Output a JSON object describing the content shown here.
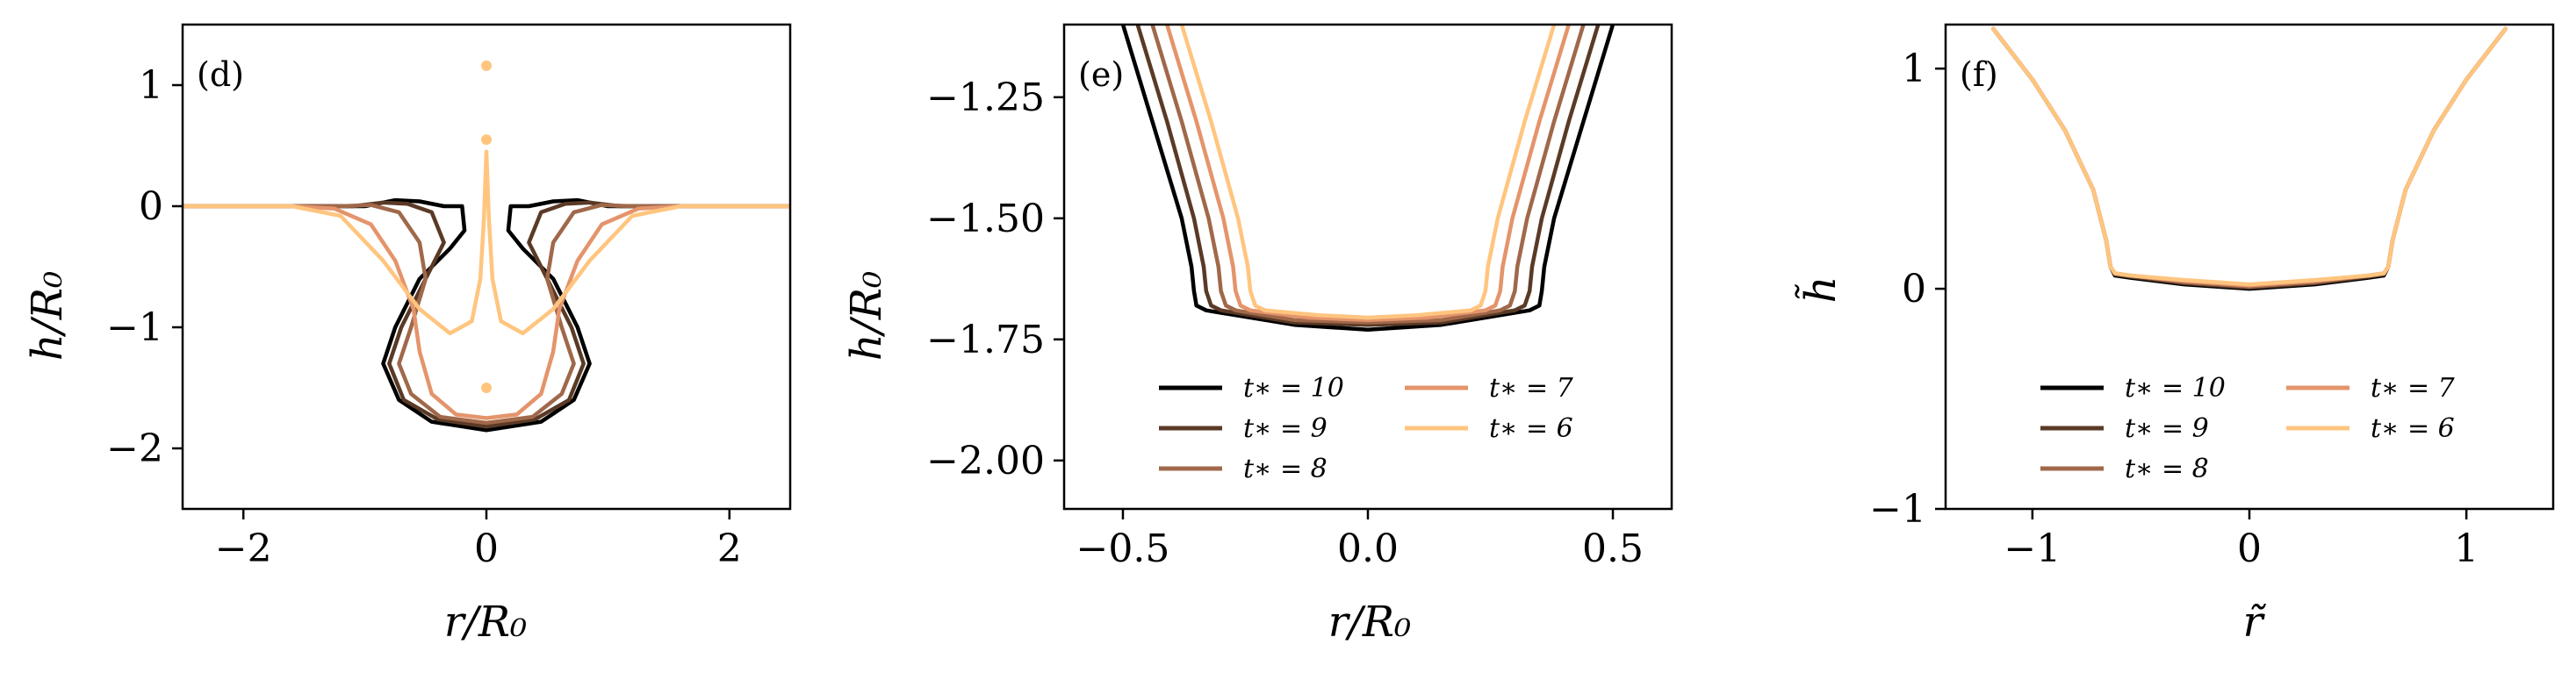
{
  "chart_data": [
    {
      "panel_tag": "(d)",
      "type": "line",
      "xlabel": "r/R₀",
      "ylabel": "h/R₀",
      "xlim": [
        -2.5,
        2.5
      ],
      "ylim": [
        -2.5,
        1.5
      ],
      "xticks": [
        {
          "v": -2,
          "label": "−2"
        },
        {
          "v": 0,
          "label": "0"
        },
        {
          "v": 2,
          "label": "2"
        }
      ],
      "yticks": [
        {
          "v": 1,
          "label": "1"
        },
        {
          "v": 0,
          "label": "0"
        },
        {
          "v": -1,
          "label": "−1"
        },
        {
          "v": -2,
          "label": "−2"
        }
      ],
      "series": [
        {
          "t": 10,
          "color": "#000000",
          "x": [
            -2.5,
            -2.0,
            -1.5,
            -1.0,
            -0.75,
            -0.55,
            -0.35,
            -0.2,
            -0.18,
            -0.3,
            -0.55,
            -0.75,
            -0.85,
            -0.72,
            -0.45,
            0.0,
            0.45,
            0.72,
            0.85,
            0.75,
            0.55,
            0.3,
            0.18,
            0.2,
            0.35,
            0.55,
            0.75,
            1.0,
            1.5,
            2.0,
            2.5
          ],
          "y": [
            0,
            0,
            0,
            0,
            0.05,
            0.04,
            0,
            0,
            -0.2,
            -0.35,
            -0.6,
            -1.0,
            -1.3,
            -1.6,
            -1.78,
            -1.85,
            -1.78,
            -1.6,
            -1.3,
            -1.0,
            -0.6,
            -0.35,
            -0.2,
            0,
            0,
            0.04,
            0.05,
            0,
            0,
            0,
            0
          ]
        },
        {
          "t": 9,
          "color": "#5a3a26",
          "x": [
            -2.5,
            -2.0,
            -1.5,
            -1.1,
            -0.85,
            -0.65,
            -0.45,
            -0.35,
            -0.5,
            -0.7,
            -0.8,
            -0.68,
            -0.4,
            0.0,
            0.4,
            0.68,
            0.8,
            0.7,
            0.5,
            0.35,
            0.45,
            0.65,
            0.85,
            1.1,
            1.5,
            2.0,
            2.5
          ],
          "y": [
            0,
            0,
            0,
            0,
            0.03,
            0.02,
            -0.05,
            -0.3,
            -0.6,
            -1.0,
            -1.3,
            -1.6,
            -1.76,
            -1.82,
            -1.76,
            -1.6,
            -1.3,
            -1.0,
            -0.6,
            -0.3,
            -0.05,
            0.02,
            0.03,
            0,
            0,
            0,
            0
          ]
        },
        {
          "t": 8,
          "color": "#a0684a",
          "x": [
            -2.5,
            -2.0,
            -1.5,
            -1.2,
            -0.95,
            -0.72,
            -0.55,
            -0.5,
            -0.62,
            -0.72,
            -0.62,
            -0.38,
            0.0,
            0.38,
            0.62,
            0.72,
            0.62,
            0.5,
            0.55,
            0.72,
            0.95,
            1.2,
            1.5,
            2.0,
            2.5
          ],
          "y": [
            0,
            0,
            0,
            0,
            0.01,
            -0.05,
            -0.3,
            -0.6,
            -1.0,
            -1.3,
            -1.55,
            -1.74,
            -1.79,
            -1.74,
            -1.55,
            -1.3,
            -1.0,
            -0.6,
            -0.3,
            -0.05,
            0.01,
            0,
            0,
            0,
            0
          ]
        },
        {
          "t": 7,
          "color": "#e4946b",
          "x": [
            -2.5,
            -2.0,
            -1.6,
            -1.25,
            -0.95,
            -0.75,
            -0.6,
            -0.55,
            -0.45,
            -0.25,
            0.0,
            0.25,
            0.45,
            0.55,
            0.6,
            0.75,
            0.95,
            1.25,
            1.6,
            2.0,
            2.5
          ],
          "y": [
            0,
            0,
            0,
            -0.02,
            -0.15,
            -0.45,
            -0.85,
            -1.2,
            -1.55,
            -1.72,
            -1.75,
            -1.72,
            -1.55,
            -1.2,
            -0.85,
            -0.45,
            -0.15,
            -0.02,
            0,
            0,
            0
          ]
        },
        {
          "t": 6,
          "color": "#ffc57f",
          "x": [
            -2.5,
            -2.0,
            -1.6,
            -1.2,
            -0.85,
            -0.55,
            -0.3,
            -0.12,
            -0.05,
            -0.02,
            0.0,
            0.02,
            0.05,
            0.12,
            0.3,
            0.55,
            0.85,
            1.2,
            1.6,
            2.0,
            2.5
          ],
          "y": [
            0,
            0,
            0,
            -0.08,
            -0.45,
            -0.85,
            -1.05,
            -0.95,
            -0.6,
            -0.1,
            0.45,
            -0.1,
            -0.6,
            -0.95,
            -1.05,
            -0.85,
            -0.45,
            -0.08,
            0,
            0,
            0
          ]
        }
      ],
      "drops": [
        {
          "x": 0.0,
          "y": 1.16,
          "color": "#ffc57f"
        },
        {
          "x": 0.0,
          "y": 0.55,
          "color": "#ffc57f"
        },
        {
          "x": 0.0,
          "y": -1.5,
          "color": "#ffc57f"
        }
      ]
    },
    {
      "panel_tag": "(e)",
      "type": "line",
      "xlabel": "r/R₀",
      "ylabel": "h/R₀",
      "xlim": [
        -0.62,
        0.62
      ],
      "ylim": [
        -2.1,
        -1.1
      ],
      "xticks": [
        {
          "v": -0.5,
          "label": "−0.5"
        },
        {
          "v": 0.0,
          "label": "0.0"
        },
        {
          "v": 0.5,
          "label": "0.5"
        }
      ],
      "yticks": [
        {
          "v": -1.25,
          "label": "−1.25"
        },
        {
          "v": -1.5,
          "label": "−1.50"
        },
        {
          "v": -1.75,
          "label": "−1.75"
        },
        {
          "v": -2.0,
          "label": "−2.00"
        }
      ],
      "series": [
        {
          "t": 10,
          "color": "#000000",
          "x": [
            -0.5,
            -0.44,
            -0.38,
            -0.36,
            -0.355,
            -0.35,
            -0.33,
            -0.15,
            0.0,
            0.15,
            0.33,
            0.35,
            0.355,
            0.36,
            0.38,
            0.44,
            0.5
          ],
          "y": [
            -1.1,
            -1.3,
            -1.5,
            -1.6,
            -1.65,
            -1.68,
            -1.69,
            -1.72,
            -1.73,
            -1.72,
            -1.69,
            -1.68,
            -1.65,
            -1.6,
            -1.5,
            -1.3,
            -1.1
          ]
        },
        {
          "t": 9,
          "color": "#5a3a26",
          "x": [
            -0.47,
            -0.41,
            -0.355,
            -0.335,
            -0.33,
            -0.32,
            -0.3,
            -0.15,
            0.0,
            0.15,
            0.3,
            0.32,
            0.33,
            0.335,
            0.355,
            0.41,
            0.47
          ],
          "y": [
            -1.1,
            -1.3,
            -1.5,
            -1.6,
            -1.65,
            -1.68,
            -1.69,
            -1.715,
            -1.72,
            -1.715,
            -1.69,
            -1.68,
            -1.65,
            -1.6,
            -1.5,
            -1.3,
            -1.1
          ]
        },
        {
          "t": 8,
          "color": "#a0684a",
          "x": [
            -0.44,
            -0.38,
            -0.325,
            -0.305,
            -0.3,
            -0.29,
            -0.27,
            -0.15,
            0.0,
            0.15,
            0.27,
            0.29,
            0.3,
            0.305,
            0.325,
            0.38,
            0.44
          ],
          "y": [
            -1.1,
            -1.3,
            -1.5,
            -1.6,
            -1.65,
            -1.68,
            -1.69,
            -1.71,
            -1.715,
            -1.71,
            -1.69,
            -1.68,
            -1.65,
            -1.6,
            -1.5,
            -1.3,
            -1.1
          ]
        },
        {
          "t": 7,
          "color": "#e4946b",
          "x": [
            -0.41,
            -0.35,
            -0.295,
            -0.275,
            -0.27,
            -0.26,
            -0.24,
            -0.12,
            0.0,
            0.12,
            0.24,
            0.26,
            0.27,
            0.275,
            0.295,
            0.35,
            0.41
          ],
          "y": [
            -1.1,
            -1.3,
            -1.5,
            -1.6,
            -1.65,
            -1.68,
            -1.69,
            -1.705,
            -1.71,
            -1.705,
            -1.69,
            -1.68,
            -1.65,
            -1.6,
            -1.5,
            -1.3,
            -1.1
          ]
        },
        {
          "t": 6,
          "color": "#ffc57f",
          "x": [
            -0.38,
            -0.32,
            -0.265,
            -0.245,
            -0.24,
            -0.23,
            -0.21,
            -0.1,
            0.0,
            0.1,
            0.21,
            0.23,
            0.24,
            0.245,
            0.265,
            0.32,
            0.38
          ],
          "y": [
            -1.1,
            -1.3,
            -1.5,
            -1.6,
            -1.65,
            -1.68,
            -1.69,
            -1.7,
            -1.705,
            -1.7,
            -1.69,
            -1.68,
            -1.65,
            -1.6,
            -1.5,
            -1.3,
            -1.1
          ]
        }
      ],
      "legend": {
        "placement": "lower-center",
        "entries": [
          {
            "label": "t∗ = 10",
            "color": "#000000"
          },
          {
            "label": "t∗ = 9",
            "color": "#5a3a26"
          },
          {
            "label": "t∗ = 8",
            "color": "#a0684a"
          },
          {
            "label": "t∗ = 7",
            "color": "#e4946b"
          },
          {
            "label": "t∗ = 6",
            "color": "#ffc57f"
          }
        ]
      }
    },
    {
      "panel_tag": "(f)",
      "type": "line",
      "xlabel": "r̃",
      "ylabel": "h̃",
      "xlim": [
        -1.4,
        1.4
      ],
      "ylim": [
        -1.0,
        1.2
      ],
      "xticks": [
        {
          "v": -1,
          "label": "−1"
        },
        {
          "v": 0,
          "label": "0"
        },
        {
          "v": 1,
          "label": "1"
        }
      ],
      "yticks": [
        {
          "v": 1,
          "label": "1"
        },
        {
          "v": 0,
          "label": "0"
        },
        {
          "v": -1,
          "label": "−1"
        }
      ],
      "series": [
        {
          "t": 10,
          "color": "#000000",
          "x": [
            -1.18,
            -1.0,
            -0.85,
            -0.72,
            -0.66,
            -0.64,
            -0.62,
            -0.55,
            -0.3,
            0.0,
            0.3,
            0.55,
            0.62,
            0.64,
            0.66,
            0.72,
            0.85,
            1.0,
            1.18
          ],
          "y": [
            1.18,
            0.95,
            0.72,
            0.45,
            0.22,
            0.1,
            0.06,
            0.05,
            0.02,
            0.0,
            0.02,
            0.05,
            0.06,
            0.1,
            0.22,
            0.45,
            0.72,
            0.95,
            1.18
          ]
        },
        {
          "t": 9,
          "color": "#5a3a26",
          "x": [
            -1.18,
            -1.0,
            -0.85,
            -0.72,
            -0.66,
            -0.64,
            -0.62,
            -0.55,
            -0.3,
            0.0,
            0.3,
            0.55,
            0.62,
            0.64,
            0.66,
            0.72,
            0.85,
            1.0,
            1.18
          ],
          "y": [
            1.18,
            0.95,
            0.72,
            0.45,
            0.22,
            0.1,
            0.065,
            0.055,
            0.025,
            0.005,
            0.025,
            0.055,
            0.065,
            0.1,
            0.22,
            0.45,
            0.72,
            0.95,
            1.18
          ]
        },
        {
          "t": 8,
          "color": "#a0684a",
          "x": [
            -1.18,
            -1.0,
            -0.85,
            -0.72,
            -0.66,
            -0.64,
            -0.62,
            -0.55,
            -0.3,
            0.0,
            0.3,
            0.55,
            0.62,
            0.64,
            0.66,
            0.72,
            0.85,
            1.0,
            1.18
          ],
          "y": [
            1.18,
            0.95,
            0.72,
            0.45,
            0.22,
            0.1,
            0.07,
            0.06,
            0.03,
            0.01,
            0.03,
            0.06,
            0.07,
            0.1,
            0.22,
            0.45,
            0.72,
            0.95,
            1.18
          ]
        },
        {
          "t": 7,
          "color": "#e4946b",
          "x": [
            -1.18,
            -1.0,
            -0.85,
            -0.72,
            -0.66,
            -0.64,
            -0.62,
            -0.55,
            -0.3,
            0.0,
            0.3,
            0.55,
            0.62,
            0.64,
            0.66,
            0.72,
            0.85,
            1.0,
            1.18
          ],
          "y": [
            1.18,
            0.95,
            0.72,
            0.45,
            0.22,
            0.1,
            0.07,
            0.06,
            0.035,
            0.015,
            0.035,
            0.06,
            0.07,
            0.1,
            0.22,
            0.45,
            0.72,
            0.95,
            1.18
          ]
        },
        {
          "t": 6,
          "color": "#ffc57f",
          "x": [
            -1.18,
            -1.0,
            -0.85,
            -0.72,
            -0.66,
            -0.64,
            -0.62,
            -0.55,
            -0.3,
            0.0,
            0.3,
            0.55,
            0.62,
            0.64,
            0.66,
            0.72,
            0.85,
            1.0,
            1.18
          ],
          "y": [
            1.18,
            0.95,
            0.72,
            0.45,
            0.22,
            0.1,
            0.07,
            0.06,
            0.04,
            0.02,
            0.04,
            0.06,
            0.07,
            0.1,
            0.22,
            0.45,
            0.72,
            0.95,
            1.18
          ]
        }
      ],
      "legend": {
        "placement": "lower-center",
        "entries": [
          {
            "label": "t∗ = 10",
            "color": "#000000"
          },
          {
            "label": "t∗ = 9",
            "color": "#5a3a26"
          },
          {
            "label": "t∗ = 8",
            "color": "#a0684a"
          },
          {
            "label": "t∗ = 7",
            "color": "#e4946b"
          },
          {
            "label": "t∗ = 6",
            "color": "#ffc57f"
          }
        ]
      }
    }
  ]
}
